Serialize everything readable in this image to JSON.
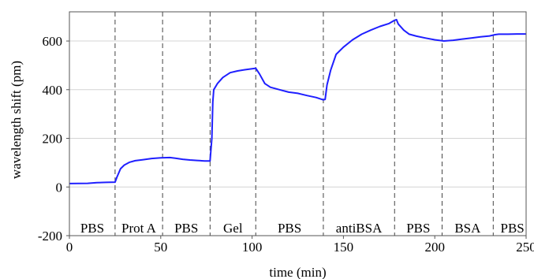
{
  "chart_data": {
    "type": "line",
    "title": "",
    "xlabel": "time (min)",
    "ylabel": "wavelength shift (pm)",
    "xlim": [
      0,
      250
    ],
    "ylim": [
      -200,
      720
    ],
    "xticks": [
      0,
      50,
      100,
      150,
      200,
      250
    ],
    "yticks": [
      -200,
      0,
      200,
      400,
      600
    ],
    "grid": "horizontal",
    "line_color": "#1f1fff",
    "series": [
      {
        "points": [
          [
            0,
            14
          ],
          [
            10,
            15
          ],
          [
            15,
            18
          ],
          [
            20,
            19
          ],
          [
            25,
            20
          ],
          [
            26,
            40
          ],
          [
            28,
            75
          ],
          [
            30,
            90
          ],
          [
            33,
            102
          ],
          [
            36,
            108
          ],
          [
            40,
            112
          ],
          [
            45,
            117
          ],
          [
            50,
            120
          ],
          [
            55,
            121
          ],
          [
            58,
            118
          ],
          [
            62,
            114
          ],
          [
            66,
            111
          ],
          [
            70,
            109
          ],
          [
            74,
            107
          ],
          [
            77,
            107
          ],
          [
            78,
            200
          ],
          [
            78.5,
            350
          ],
          [
            79,
            400
          ],
          [
            81,
            425
          ],
          [
            84,
            450
          ],
          [
            88,
            470
          ],
          [
            92,
            477
          ],
          [
            96,
            482
          ],
          [
            100,
            486
          ],
          [
            102,
            488
          ],
          [
            104,
            465
          ],
          [
            107,
            425
          ],
          [
            110,
            410
          ],
          [
            115,
            400
          ],
          [
            120,
            390
          ],
          [
            125,
            385
          ],
          [
            130,
            376
          ],
          [
            135,
            368
          ],
          [
            139,
            358
          ],
          [
            140,
            360
          ],
          [
            141,
            420
          ],
          [
            143,
            480
          ],
          [
            146,
            545
          ],
          [
            150,
            575
          ],
          [
            155,
            605
          ],
          [
            160,
            628
          ],
          [
            165,
            645
          ],
          [
            170,
            660
          ],
          [
            175,
            672
          ],
          [
            178,
            685
          ],
          [
            179,
            688
          ],
          [
            180,
            670
          ],
          [
            183,
            645
          ],
          [
            186,
            628
          ],
          [
            190,
            620
          ],
          [
            195,
            612
          ],
          [
            200,
            605
          ],
          [
            205,
            600
          ],
          [
            210,
            603
          ],
          [
            215,
            608
          ],
          [
            220,
            612
          ],
          [
            225,
            617
          ],
          [
            230,
            621
          ],
          [
            233,
            626
          ],
          [
            235,
            628
          ],
          [
            240,
            628
          ],
          [
            245,
            629
          ],
          [
            250,
            629
          ]
        ]
      }
    ],
    "phases": [
      {
        "label": "PBS",
        "start": 0,
        "end": 25
      },
      {
        "label": "Prot A",
        "start": 25,
        "end": 51
      },
      {
        "label": "PBS",
        "start": 51,
        "end": 77
      },
      {
        "label": "Gel",
        "start": 77,
        "end": 102
      },
      {
        "label": "PBS",
        "start": 102,
        "end": 139
      },
      {
        "label": "antiBSA",
        "start": 139,
        "end": 178
      },
      {
        "label": "PBS",
        "start": 178,
        "end": 204
      },
      {
        "label": "BSA",
        "start": 204,
        "end": 232
      },
      {
        "label": "PBS",
        "start": 232,
        "end": 255
      }
    ],
    "phase_boundaries": [
      25,
      51,
      77,
      102,
      139,
      178,
      204,
      232
    ]
  }
}
